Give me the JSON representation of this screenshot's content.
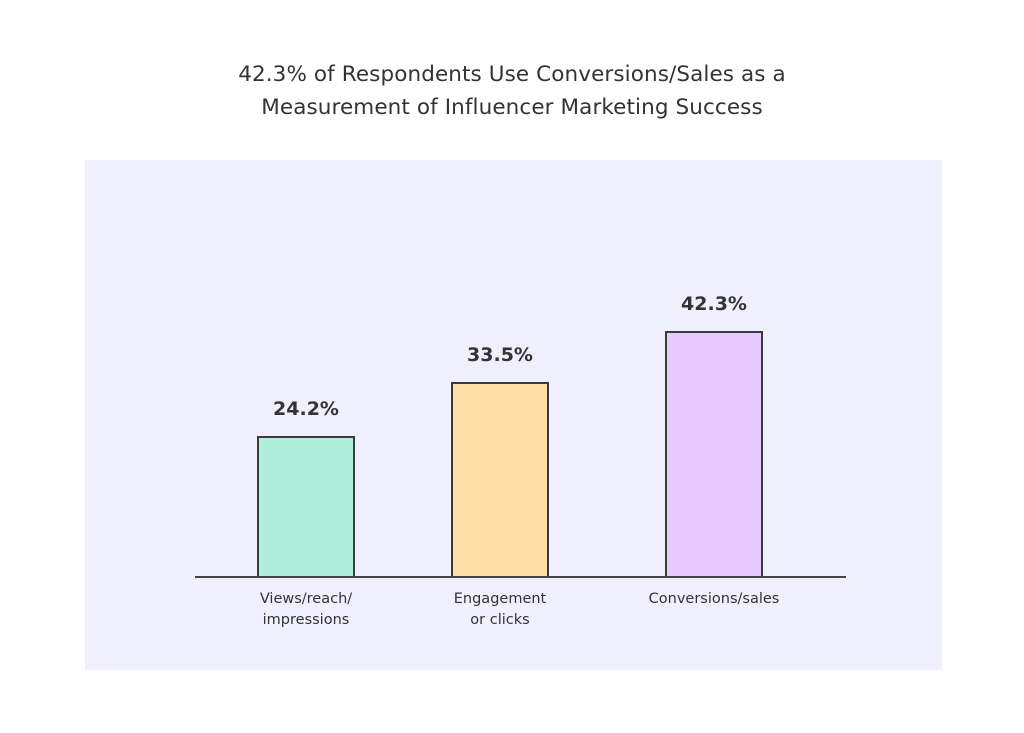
{
  "title_line1": "42.3% of Respondents Use Conversions/Sales as a",
  "title_line2": "Measurement of Influencer Marketing Success",
  "colors": {
    "background": "#ffffff",
    "panel": "#f0effe",
    "bar_outline": "#3a3a3a",
    "bars": [
      "#b2eedd",
      "#ffdfa5",
      "#e6c9fd"
    ]
  },
  "chart_data": {
    "type": "bar",
    "title": "42.3% of Respondents Use Conversions/Sales as a Measurement of Influencer Marketing Success",
    "categories": [
      "Views/reach/impressions",
      "Engagement or clicks",
      "Conversions/sales"
    ],
    "category_label_lines": [
      [
        "Views/reach/",
        "impressions"
      ],
      [
        "Engagement",
        "or clicks"
      ],
      [
        "Conversions/sales"
      ]
    ],
    "values": [
      24.2,
      33.5,
      42.3
    ],
    "value_labels": [
      "24.2%",
      "33.5%",
      "42.3%"
    ],
    "unit": "%",
    "xlabel": "",
    "ylabel": "",
    "ylim": [
      0,
      50
    ],
    "grid": false,
    "legend": "none"
  }
}
